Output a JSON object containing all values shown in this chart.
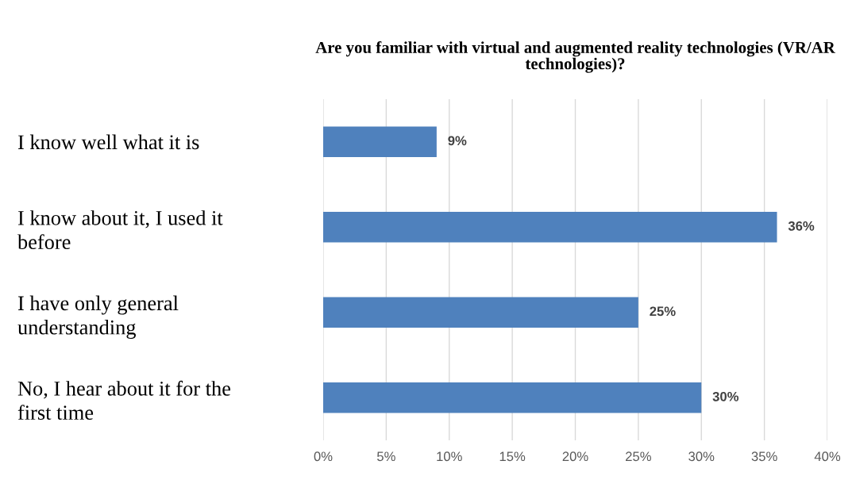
{
  "chart_data": {
    "type": "bar",
    "orientation": "horizontal",
    "title": "Are you familiar with virtual and augmented reality technologies (VR/AR\ntechnologies)?",
    "categories": [
      "I know well what it is",
      "I know about it, I used it\nbefore",
      "I have only general\nunderstanding",
      "No, I hear about it for the\nfirst time"
    ],
    "values": [
      9,
      36,
      25,
      30
    ],
    "value_labels": [
      "9%",
      "36%",
      "25%",
      "30%"
    ],
    "color": "#4f81bd",
    "xlim": [
      0,
      40
    ],
    "xticks": [
      {
        "value": 0,
        "label": "0%"
      },
      {
        "value": 5,
        "label": "5%"
      },
      {
        "value": 10,
        "label": "10%"
      },
      {
        "value": 15,
        "label": "15%"
      },
      {
        "value": 20,
        "label": "20%"
      },
      {
        "value": 25,
        "label": "25%"
      },
      {
        "value": 30,
        "label": "30%"
      },
      {
        "value": 35,
        "label": "35%"
      },
      {
        "value": 40,
        "label": "40%"
      }
    ],
    "grid": "x",
    "legend": false
  }
}
